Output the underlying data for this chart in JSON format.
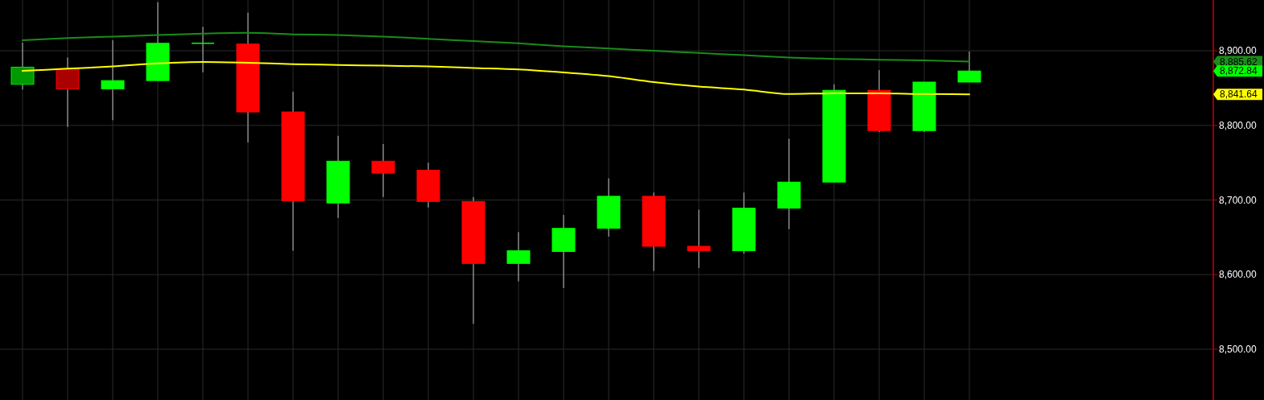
{
  "chart_data": {
    "type": "candlestick",
    "categories": [
      null,
      null,
      null,
      null,
      null,
      null,
      null,
      null,
      null,
      null,
      null,
      null,
      null,
      null,
      null,
      null,
      null,
      null,
      null,
      null,
      null,
      null
    ],
    "ohlc": [
      [
        8855,
        8911,
        8848,
        8878
      ],
      [
        8876,
        8891,
        8798,
        8849
      ],
      [
        8849,
        8914,
        8807,
        8860
      ],
      [
        8860,
        8965,
        8860,
        8910
      ],
      [
        8910,
        8932,
        8871,
        8910
      ],
      [
        8909,
        8951,
        8777,
        8818
      ],
      [
        8818,
        8845,
        8632,
        8699
      ],
      [
        8696,
        8786,
        8676,
        8752
      ],
      [
        8752,
        8775,
        8704,
        8736
      ],
      [
        8740,
        8750,
        8690,
        8698
      ],
      [
        8698,
        8704,
        8534,
        8615
      ],
      [
        8615,
        8657,
        8591,
        8632
      ],
      [
        8631,
        8680,
        8582,
        8662
      ],
      [
        8662,
        8729,
        8651,
        8705
      ],
      [
        8705,
        8710,
        8605,
        8638
      ],
      [
        8638,
        8687,
        8609,
        8632
      ],
      [
        8632,
        8710,
        8628,
        8689
      ],
      [
        8689,
        8782,
        8661,
        8724
      ],
      [
        8724,
        8855,
        8724,
        8847
      ],
      [
        8847,
        8874,
        8791,
        8793
      ],
      [
        8793,
        8858,
        8791,
        8858
      ],
      [
        8858,
        8899,
        8858,
        8872.84
      ]
    ],
    "colors": [
      "#009900",
      "#aa0000",
      "#00ff00",
      "#00ff00",
      "#00ff00",
      "#ff0000",
      "#ff0000",
      "#00ff00",
      "#ff0000",
      "#ff0000",
      "#ff0000",
      "#00ff00",
      "#00ff00",
      "#00ff00",
      "#ff0000",
      "#ff0000",
      "#00ff00",
      "#00ff00",
      "#00ff00",
      "#ff0000",
      "#00ff00",
      "#00ff00"
    ],
    "series": [
      {
        "type": "line",
        "color": "#1a8c1a",
        "values": [
          8914,
          8917,
          8919,
          8921,
          8923,
          8924,
          8922,
          8921,
          8919,
          8916,
          8913,
          8910,
          8906,
          8903,
          8900,
          8897,
          8894,
          8891,
          8889,
          8888,
          8887,
          8885.62
        ]
      },
      {
        "type": "line",
        "color": "#ffff00",
        "values": [
          8873,
          8876,
          8879,
          8883,
          8885,
          8884,
          8882,
          8881,
          8880,
          8879,
          8877,
          8875,
          8871,
          8866,
          8858,
          8852,
          8848,
          8842,
          8843,
          8843,
          8842,
          8841.64
        ]
      }
    ],
    "ylim": [
      8432,
      8968
    ],
    "yticks": [
      {
        "value": 8500,
        "label": "8,500.00"
      },
      {
        "value": 8600,
        "label": "8,600.00"
      },
      {
        "value": 8700,
        "label": "8,700.00"
      },
      {
        "value": 8800,
        "label": "8,800.00"
      },
      {
        "value": 8900,
        "label": "8,900.00"
      }
    ],
    "annotations": [
      "8,885.62",
      "8,872.84",
      "8,841.64"
    ],
    "grid": true
  }
}
